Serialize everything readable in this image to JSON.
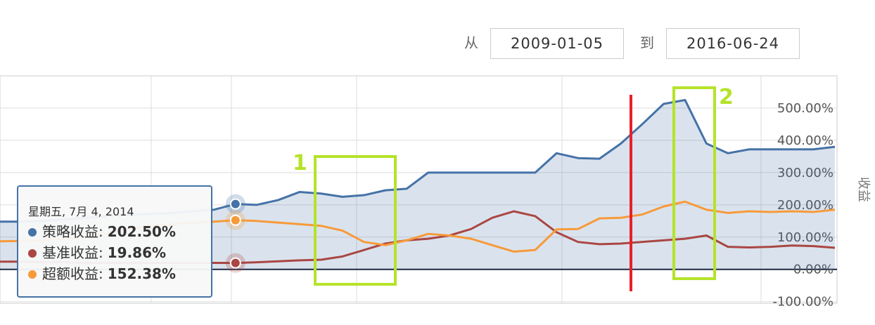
{
  "chart_data": {
    "type": "line",
    "date_range": {
      "from_label": "从",
      "from": "2009-01-05",
      "to_label": "到",
      "to": "2016-06-24"
    },
    "y_axis_title": "收益",
    "categories": [
      null,
      null,
      null,
      null,
      null,
      null,
      null,
      null,
      null,
      null,
      null,
      null,
      null,
      null,
      null,
      null,
      null,
      null,
      null,
      null,
      null,
      null,
      null,
      null,
      null,
      null,
      null,
      null,
      null,
      null,
      null,
      null,
      null,
      null,
      null,
      null,
      null,
      null,
      null,
      null
    ],
    "series": [
      {
        "name": "策略收益",
        "color": "#4572a7",
        "values": [
          148,
          148,
          150,
          155,
          160,
          165,
          168,
          172,
          175,
          180,
          185,
          202.5,
          200,
          215,
          240,
          235,
          225,
          230,
          245,
          250,
          300,
          300,
          300,
          300,
          300,
          300,
          360,
          345,
          343,
          390,
          450,
          513,
          525,
          390,
          360,
          372,
          372,
          372,
          372,
          380
        ]
      },
      {
        "name": "基准收益",
        "color": "#aa4643",
        "values": [
          24,
          24,
          22,
          22,
          20,
          20,
          20,
          20,
          20,
          20,
          20,
          19.86,
          22,
          25,
          28,
          30,
          40,
          60,
          80,
          90,
          95,
          105,
          125,
          160,
          180,
          165,
          115,
          85,
          78,
          80,
          85,
          90,
          95,
          105,
          70,
          68,
          70,
          74,
          72,
          67
        ]
      },
      {
        "name": "超额收益",
        "color": "#f79a3a",
        "values": [
          87,
          88,
          90,
          95,
          100,
          110,
          125,
          135,
          140,
          145,
          148,
          152.38,
          150,
          145,
          140,
          135,
          120,
          85,
          75,
          90,
          110,
          105,
          95,
          75,
          55,
          60,
          124,
          125,
          158,
          160,
          170,
          195,
          210,
          185,
          175,
          180,
          178,
          180,
          178,
          185
        ]
      }
    ],
    "ylim": [
      -105,
      600
    ],
    "yticks": [
      {
        "value": -100,
        "label": "-100.00%"
      },
      {
        "value": 0,
        "label": "0.00%"
      },
      {
        "value": 100,
        "label": "100.00%"
      },
      {
        "value": 200,
        "label": "200.00%"
      },
      {
        "value": 300,
        "label": "300.00%"
      },
      {
        "value": 400,
        "label": "400.00%"
      },
      {
        "value": 500,
        "label": "500.00%"
      }
    ],
    "grid": true,
    "tooltip": {
      "index": 11,
      "date": "星期五, 7月 4, 2014",
      "labels": [
        "策略收益:",
        "基准收益:",
        "超额收益:"
      ],
      "values": [
        202.5,
        19.86,
        152.38
      ],
      "value_labels": [
        "202.50%",
        "19.86%",
        "152.38%"
      ]
    },
    "annotations": [
      "1",
      "2"
    ]
  }
}
